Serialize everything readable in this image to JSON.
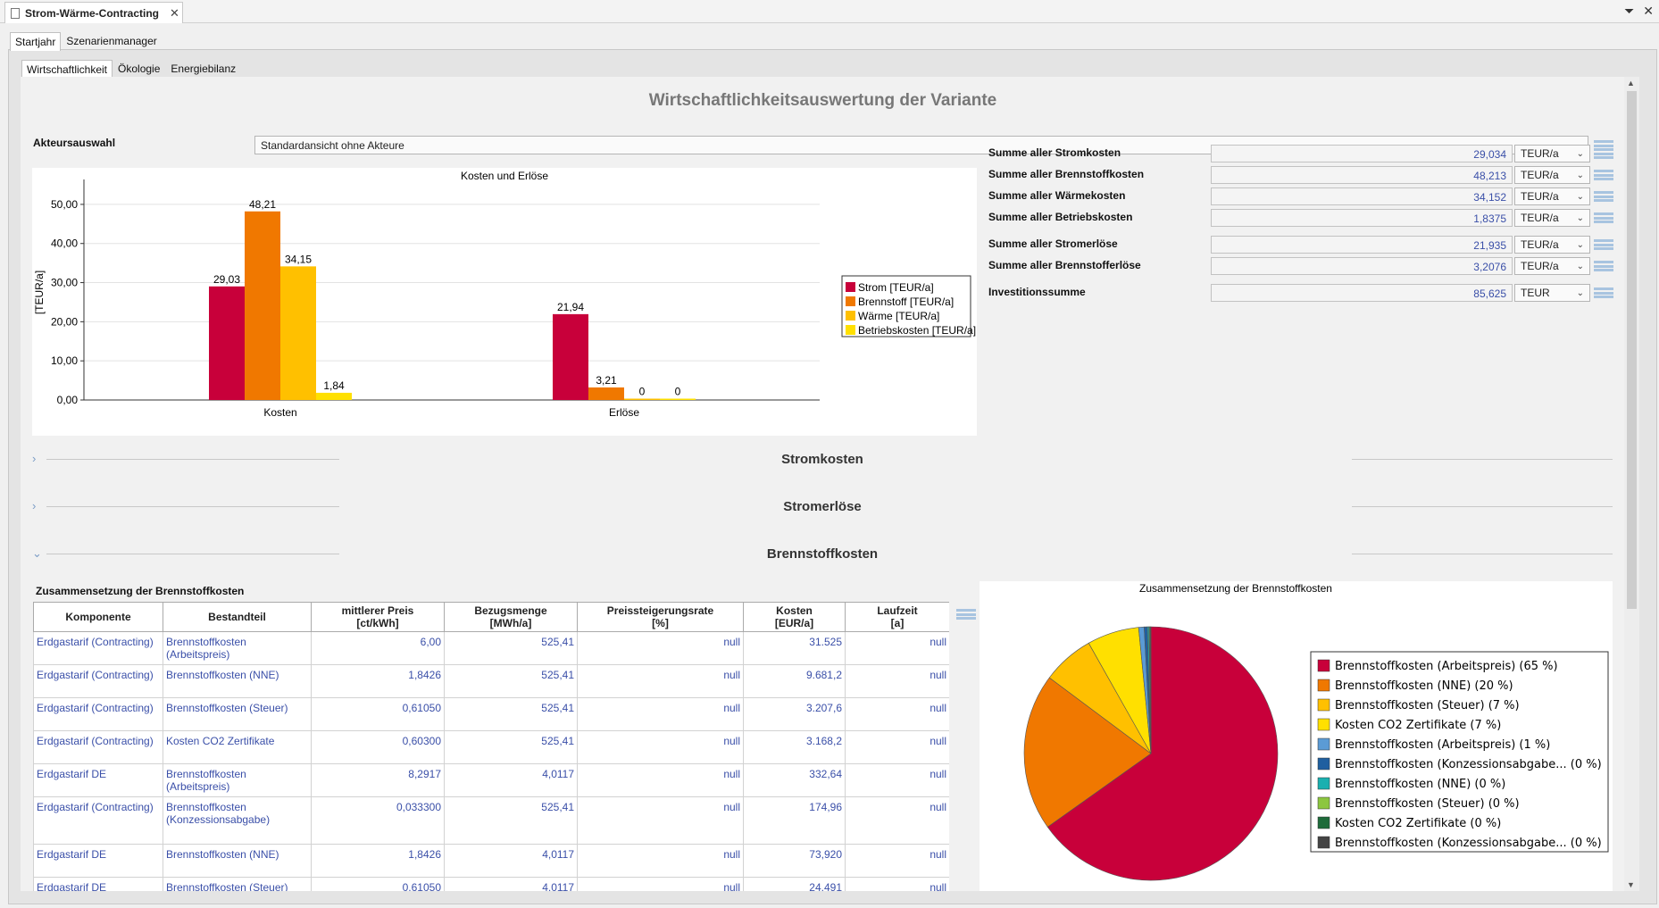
{
  "window": {
    "title": "Strom-Wärme-Contracting",
    "controls": [
      "⏷",
      "✕"
    ]
  },
  "outer_tabs": [
    "Startjahr",
    "Szenarienmanager"
  ],
  "inner_tabs": [
    "Wirtschaftlichkeit",
    "Ökologie",
    "Energiebilanz"
  ],
  "page_title": "Wirtschaftlichkeitsauswertung der Variante",
  "akteur": {
    "label": "Akteursauswahl",
    "value": "Standardansicht ohne Akteure"
  },
  "summary": [
    {
      "label": "Summe aller Stromkosten",
      "value": "29,034",
      "unit": "TEUR/a"
    },
    {
      "label": "Summe aller Brennstoffkosten",
      "value": "48,213",
      "unit": "TEUR/a"
    },
    {
      "label": "Summe aller Wärmekosten",
      "value": "34,152",
      "unit": "TEUR/a"
    },
    {
      "label": "Summe aller Betriebskosten",
      "value": "1,8375",
      "unit": "TEUR/a"
    },
    {
      "label": "Summe aller Stromerlöse",
      "value": "21,935",
      "unit": "TEUR/a"
    },
    {
      "label": "Summe aller Brennstofferlöse",
      "value": "3,2076",
      "unit": "TEUR/a"
    },
    {
      "label": "Investitionssumme",
      "value": "85,625",
      "unit": "TEUR"
    }
  ],
  "sections": [
    {
      "title": "Stromkosten",
      "chevron": "›"
    },
    {
      "title": "Stromerlöse",
      "chevron": "›"
    },
    {
      "title": "Brennstoffkosten",
      "chevron": "⌄"
    }
  ],
  "table": {
    "title": "Zusammensetzung der Brennstoffkosten",
    "headers": [
      [
        "Komponente",
        ""
      ],
      [
        "Bestandteil",
        ""
      ],
      [
        "mittlerer Preis",
        "[ct/kWh]"
      ],
      [
        "Bezugsmenge",
        "[MWh/a]"
      ],
      [
        "Preissteigerungsrate",
        "[%]"
      ],
      [
        "Kosten",
        "[EUR/a]"
      ],
      [
        "Laufzeit",
        "[a]"
      ]
    ],
    "rows": [
      [
        "Erdgastarif (Contracting)",
        "Brennstoffkosten (Arbeitspreis)",
        "6,00",
        "525,41",
        "null",
        "31.525",
        "null"
      ],
      [
        "Erdgastarif (Contracting)",
        "Brennstoffkosten (NNE)",
        "1,8426",
        "525,41",
        "null",
        "9.681,2",
        "null"
      ],
      [
        "Erdgastarif (Contracting)",
        "Brennstoffkosten (Steuer)",
        "0,61050",
        "525,41",
        "null",
        "3.207,6",
        "null"
      ],
      [
        "Erdgastarif (Contracting)",
        "Kosten CO2 Zertifikate",
        "0,60300",
        "525,41",
        "null",
        "3.168,2",
        "null"
      ],
      [
        "Erdgastarif DE",
        "Brennstoffkosten (Arbeitspreis)",
        "8,2917",
        "4,0117",
        "null",
        "332,64",
        "null"
      ],
      [
        "Erdgastarif (Contracting)",
        "Brennstoffkosten (Konzessionsabgabe)",
        "0,033300",
        "525,41",
        "null",
        "174,96",
        "null"
      ],
      [
        "Erdgastarif DE",
        "Brennstoffkosten (NNE)",
        "1,8426",
        "4,0117",
        "null",
        "73,920",
        "null"
      ],
      [
        "Erdgastarif DE",
        "Brennstoffkosten (Steuer)",
        "0,61050",
        "4,0117",
        "null",
        "24,491",
        "null"
      ]
    ]
  },
  "chart_data": [
    {
      "type": "bar",
      "title": "Kosten und Erlöse",
      "ylabel": "[TEUR/a]",
      "xlabel": "",
      "categories": [
        "Kosten",
        "Erlöse"
      ],
      "ylim": [
        0,
        55
      ],
      "yticks": [
        "0,00",
        "10,00",
        "20,00",
        "30,00",
        "40,00",
        "50,00"
      ],
      "grid": true,
      "legend_position": "right",
      "series": [
        {
          "name": "Strom [TEUR/a]",
          "color": "#c8003a",
          "values": [
            29.03,
            21.94
          ],
          "labels": [
            "29,03",
            "21,94"
          ]
        },
        {
          "name": "Brennstoff [TEUR/a]",
          "color": "#f07800",
          "values": [
            48.21,
            3.21
          ],
          "labels": [
            "48,21",
            "3,21"
          ]
        },
        {
          "name": "Wärme [TEUR/a]",
          "color": "#ffc000",
          "values": [
            34.15,
            0
          ],
          "labels": [
            "34,15",
            "0"
          ]
        },
        {
          "name": "Betriebskosten [TEUR/a]",
          "color": "#ffe000",
          "values": [
            1.84,
            0
          ],
          "labels": [
            "1,84",
            "0"
          ]
        }
      ]
    },
    {
      "type": "pie",
      "title": "Zusammensetzung der Brennstoffkosten",
      "legend_position": "right",
      "slices": [
        {
          "label": "Brennstoffkosten (Arbeitspreis) (65 %)",
          "value": 65.0,
          "color": "#c8003a"
        },
        {
          "label": "Brennstoffkosten (NNE) (20 %)",
          "value": 20.0,
          "color": "#f07800"
        },
        {
          "label": "Brennstoffkosten (Steuer) (7 %)",
          "value": 6.6,
          "color": "#ffc000"
        },
        {
          "label": "Kosten CO2 Zertifikate (7 %)",
          "value": 6.6,
          "color": "#ffe000"
        },
        {
          "label": "Brennstoffkosten (Arbeitspreis) (1 %)",
          "value": 0.7,
          "color": "#5b9bd5"
        },
        {
          "label": "Brennstoffkosten (Konzessionsabgabe... (0 %)",
          "value": 0.4,
          "color": "#1f5fa0"
        },
        {
          "label": "Brennstoffkosten (NNE) (0 %)",
          "value": 0.2,
          "color": "#1ab0b0"
        },
        {
          "label": "Brennstoffkosten (Steuer) (0 %)",
          "value": 0.1,
          "color": "#8cc63f"
        },
        {
          "label": "Kosten CO2 Zertifikate (0 %)",
          "value": 0.1,
          "color": "#1e6b3a"
        },
        {
          "label": "Brennstoffkosten (Konzessionsabgabe... (0 %)",
          "value": 0.05,
          "color": "#444444"
        }
      ]
    }
  ]
}
